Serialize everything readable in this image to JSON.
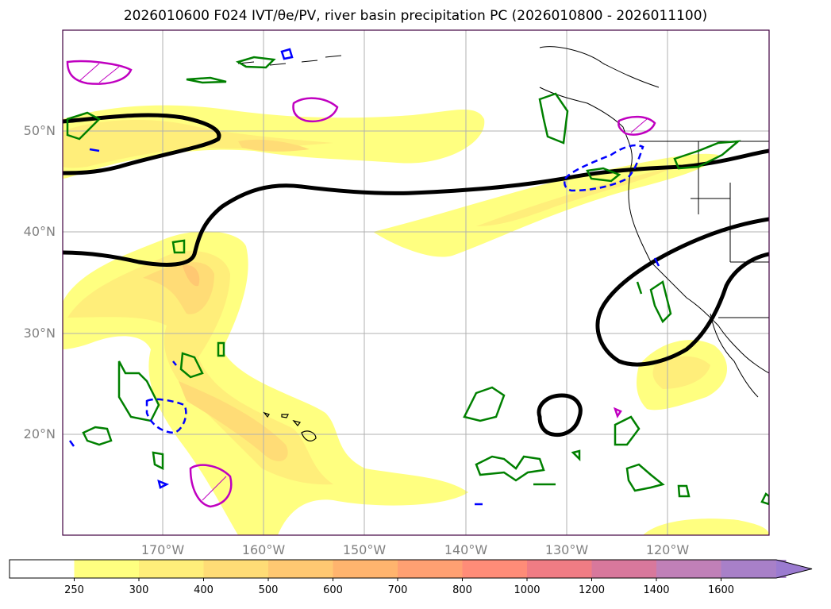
{
  "title": "2026010600 F024 IVT/θe/PV, river basin precipitation PC (2026010800 - 2026011100)",
  "lat_labels": [
    "50°N",
    "40°N",
    "30°N",
    "20°N"
  ],
  "lon_labels": [
    "170°W",
    "160°W",
    "150°W",
    "140°W",
    "130°W",
    "120°W"
  ],
  "colorbar": {
    "ticks": [
      "250",
      "300",
      "400",
      "500",
      "600",
      "700",
      "800",
      "1000",
      "1200",
      "1400",
      "1600"
    ],
    "colors": [
      "#ffff80",
      "#ffee7a",
      "#ffdc76",
      "#ffc872",
      "#ffb46e",
      "#ffa072",
      "#ff8c78",
      "#f07c84",
      "#d8789c",
      "#c080b8",
      "#a880c8"
    ],
    "extend_color": "#9b7bd0"
  },
  "contour_colors": {
    "theta_e": "#000000",
    "pv_positive": "#008000",
    "pv_negative": "#0000ff",
    "magenta": "#c000c0"
  }
}
